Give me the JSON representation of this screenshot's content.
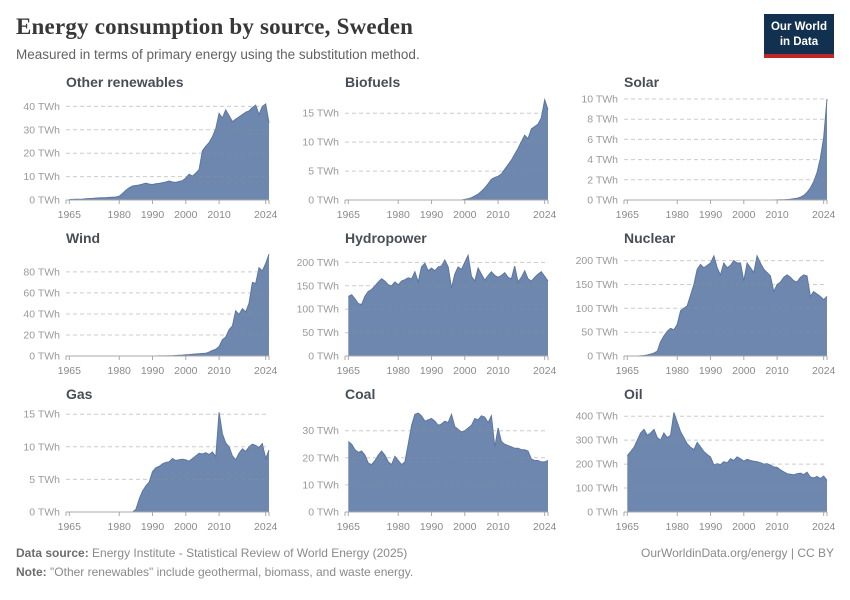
{
  "header": {
    "title": "Energy consumption by source, Sweden",
    "subtitle": "Measured in terms of primary energy using the substitution method."
  },
  "logo": {
    "line1": "Our World",
    "line2": "in Data"
  },
  "footer": {
    "datasource_label": "Data source:",
    "datasource": "Energy Institute - Statistical Review of World Energy (2025)",
    "note_label": "Note:",
    "note": "\"Other renewables\" include geothermal, biomass, and waste energy.",
    "right": "OurWorldinData.org/energy | CC BY"
  },
  "colors": {
    "area": "#6e87ae",
    "area_line": "#5b76a1",
    "grid": "#8f8f8f",
    "axis": "#a9a9a9",
    "y_tick_label": "#9a9a9a",
    "x_tick_label": "#8a8a8a",
    "chart_title": "#474e57",
    "logo_bg": "#12304f",
    "logo_red": "#c0272d"
  },
  "chart_data": [
    {
      "type": "area",
      "title": "Other renewables",
      "unit": "TWh",
      "x_start": 1965,
      "xlim": [
        1964,
        2025
      ],
      "ylim": [
        0,
        44
      ],
      "y_ticks": [
        0,
        10,
        20,
        30,
        40
      ],
      "x_ticks": [
        1965,
        1980,
        1990,
        2000,
        2010,
        2024
      ],
      "values": [
        0.2,
        0.25,
        0.3,
        0.35,
        0.4,
        0.5,
        0.6,
        0.7,
        0.8,
        0.9,
        1.0,
        1.0,
        1.1,
        1.2,
        1.3,
        1.6,
        2.8,
        4.2,
        5.2,
        6.0,
        6.2,
        6.4,
        6.8,
        7.2,
        6.8,
        6.6,
        6.9,
        7.1,
        7.4,
        7.7,
        8.1,
        7.7,
        7.5,
        7.9,
        8.3,
        9.4,
        11.0,
        10.2,
        11.5,
        13.0,
        21.0,
        23.0,
        24.5,
        27.0,
        30.5,
        37.0,
        35.0,
        38.5,
        36.0,
        33.5,
        34.5,
        35.5,
        36.5,
        37.5,
        38.0,
        39.5,
        40.5,
        36.5,
        40.0,
        41.0,
        33.0
      ]
    },
    {
      "type": "area",
      "title": "Biofuels",
      "unit": "TWh",
      "x_start": 1965,
      "xlim": [
        1964,
        2025
      ],
      "ylim": [
        0,
        17.8
      ],
      "y_ticks": [
        0,
        5,
        10,
        15
      ],
      "x_ticks": [
        1965,
        1980,
        1990,
        2000,
        2010,
        2024
      ],
      "values": [
        0,
        0,
        0,
        0,
        0,
        0,
        0,
        0,
        0,
        0,
        0,
        0,
        0,
        0,
        0,
        0,
        0,
        0,
        0,
        0,
        0,
        0,
        0,
        0,
        0,
        0,
        0,
        0,
        0,
        0,
        0,
        0,
        0,
        0,
        0,
        0.1,
        0.2,
        0.4,
        0.7,
        1.0,
        1.5,
        2.1,
        2.8,
        3.6,
        3.9,
        4.1,
        4.5,
        5.3,
        6.1,
        6.9,
        7.9,
        8.9,
        10.1,
        11.2,
        10.6,
        12.3,
        12.7,
        13.1,
        14.2,
        17.3,
        15.6
      ]
    },
    {
      "type": "area",
      "title": "Solar",
      "unit": "TWh",
      "x_start": 1965,
      "xlim": [
        1964,
        2025
      ],
      "ylim": [
        0,
        10.2
      ],
      "y_ticks": [
        0,
        2,
        4,
        6,
        8,
        10
      ],
      "x_ticks": [
        1965,
        1980,
        1990,
        2000,
        2010,
        2024
      ],
      "values": [
        0,
        0,
        0,
        0,
        0,
        0,
        0,
        0,
        0,
        0,
        0,
        0,
        0,
        0,
        0,
        0,
        0,
        0,
        0,
        0,
        0,
        0,
        0,
        0,
        0,
        0,
        0,
        0,
        0,
        0,
        0,
        0,
        0,
        0,
        0,
        0,
        0,
        0,
        0,
        0,
        0,
        0,
        0,
        0,
        0,
        0.01,
        0.02,
        0.03,
        0.05,
        0.08,
        0.12,
        0.18,
        0.28,
        0.45,
        0.75,
        1.2,
        1.8,
        2.7,
        4.1,
        6.2,
        10.0
      ]
    },
    {
      "type": "area",
      "title": "Wind",
      "unit": "TWh",
      "x_start": 1965,
      "xlim": [
        1964,
        2025
      ],
      "ylim": [
        0,
        98
      ],
      "y_ticks": [
        0,
        20,
        40,
        60,
        80
      ],
      "x_ticks": [
        1965,
        1980,
        1990,
        2000,
        2010,
        2024
      ],
      "values": [
        0,
        0,
        0,
        0,
        0,
        0,
        0,
        0,
        0,
        0,
        0,
        0,
        0,
        0,
        0,
        0,
        0,
        0,
        0,
        0,
        0,
        0,
        0,
        0,
        0,
        0.01,
        0.02,
        0.05,
        0.08,
        0.12,
        0.2,
        0.3,
        0.5,
        0.7,
        0.9,
        1.2,
        1.3,
        1.6,
        1.9,
        2.2,
        2.4,
        2.6,
        3.7,
        5.2,
        6.5,
        9.0,
        15.5,
        18.0,
        25.0,
        28.5,
        43.0,
        39.5,
        45.0,
        42.0,
        50.0,
        70.0,
        69.0,
        84.0,
        81.0,
        88.0,
        97.0
      ]
    },
    {
      "type": "area",
      "title": "Hydropower",
      "unit": "TWh",
      "x_start": 1965,
      "xlim": [
        1964,
        2025
      ],
      "ylim": [
        0,
        220
      ],
      "y_ticks": [
        0,
        50,
        100,
        150,
        200
      ],
      "x_ticks": [
        1965,
        1980,
        1990,
        2000,
        2010,
        2024
      ],
      "values": [
        127,
        131,
        122,
        112,
        110,
        128,
        138,
        142,
        150,
        158,
        165,
        160,
        152,
        150,
        158,
        152,
        160,
        163,
        167,
        165,
        180,
        158,
        190,
        198,
        182,
        188,
        182,
        190,
        192,
        205,
        190,
        145,
        175,
        190,
        185,
        200,
        215,
        170,
        160,
        188,
        175,
        162,
        172,
        180,
        172,
        168,
        172,
        178,
        168,
        165,
        192,
        158,
        168,
        182,
        165,
        160,
        168,
        175,
        180,
        170,
        160
      ]
    },
    {
      "type": "area",
      "title": "Nuclear",
      "unit": "TWh",
      "x_start": 1965,
      "xlim": [
        1964,
        2025
      ],
      "ylim": [
        0,
        216
      ],
      "y_ticks": [
        0,
        50,
        100,
        150,
        200
      ],
      "x_ticks": [
        1965,
        1980,
        1990,
        2000,
        2010,
        2024
      ],
      "values": [
        0,
        0,
        0,
        0,
        0.5,
        1,
        2,
        4,
        6,
        10,
        30,
        42,
        52,
        58,
        55,
        66,
        95,
        100,
        105,
        128,
        150,
        182,
        192,
        185,
        190,
        195,
        210,
        185,
        170,
        195,
        185,
        190,
        200,
        195,
        195,
        157,
        195,
        185,
        175,
        210,
        195,
        182,
        175,
        168,
        135,
        150,
        155,
        165,
        170,
        165,
        158,
        155,
        165,
        170,
        168,
        125,
        135,
        130,
        125,
        118,
        125
      ]
    },
    {
      "type": "area",
      "title": "Gas",
      "unit": "TWh",
      "x_start": 1965,
      "xlim": [
        1964,
        2025
      ],
      "ylim": [
        0,
        15.8
      ],
      "y_ticks": [
        0,
        5,
        10,
        15
      ],
      "x_ticks": [
        1965,
        1980,
        1990,
        2000,
        2010,
        2024
      ],
      "values": [
        0,
        0,
        0,
        0,
        0,
        0,
        0,
        0,
        0,
        0,
        0,
        0,
        0,
        0,
        0,
        0,
        0,
        0,
        0,
        0,
        0.4,
        2.0,
        3.2,
        4.0,
        4.6,
        6.2,
        6.8,
        7.0,
        7.4,
        7.6,
        7.7,
        8.2,
        7.9,
        8.0,
        8.1,
        8.0,
        7.8,
        8.2,
        8.6,
        9.0,
        8.9,
        9.1,
        8.8,
        9.2,
        8.5,
        15.3,
        12.0,
        10.6,
        10.0,
        8.6,
        8.0,
        9.0,
        9.7,
        9.3,
        10.0,
        10.4,
        10.2,
        9.9,
        10.5,
        8.2,
        9.5
      ]
    },
    {
      "type": "area",
      "title": "Coal",
      "unit": "TWh",
      "x_start": 1965,
      "xlim": [
        1964,
        2025
      ],
      "ylim": [
        0,
        38
      ],
      "y_ticks": [
        0,
        10,
        20,
        30
      ],
      "x_ticks": [
        1965,
        1980,
        1990,
        2000,
        2010,
        2024
      ],
      "values": [
        26,
        25,
        23,
        22,
        22.5,
        21,
        18,
        17.5,
        19,
        21,
        22.5,
        21,
        18.5,
        17.5,
        20.5,
        19,
        17.5,
        18.5,
        25,
        32,
        36,
        36.5,
        35.5,
        33.5,
        34,
        34.5,
        33.5,
        32,
        32.5,
        33.5,
        33,
        36,
        31.5,
        30.5,
        29.5,
        30,
        31,
        32,
        34.5,
        34,
        35.5,
        35,
        33,
        35.5,
        24,
        31,
        26,
        25,
        24.5,
        24,
        23.5,
        23.5,
        23,
        23,
        22.5,
        19.5,
        19,
        19,
        18.5,
        18.5,
        19
      ]
    },
    {
      "type": "area",
      "title": "Oil",
      "unit": "TWh",
      "x_start": 1965,
      "xlim": [
        1964,
        2025
      ],
      "ylim": [
        0,
        430
      ],
      "y_ticks": [
        0,
        100,
        200,
        300,
        400
      ],
      "x_ticks": [
        1965,
        1980,
        1990,
        2000,
        2010,
        2024
      ],
      "values": [
        235,
        252,
        270,
        300,
        330,
        345,
        320,
        330,
        345,
        310,
        300,
        330,
        310,
        320,
        415,
        375,
        335,
        310,
        285,
        270,
        260,
        290,
        272,
        252,
        240,
        230,
        196,
        202,
        198,
        210,
        205,
        222,
        215,
        230,
        222,
        212,
        220,
        215,
        212,
        210,
        206,
        200,
        202,
        196,
        188,
        186,
        176,
        168,
        160,
        158,
        155,
        160,
        162,
        156,
        166,
        146,
        142,
        148,
        140,
        150,
        132
      ]
    }
  ]
}
